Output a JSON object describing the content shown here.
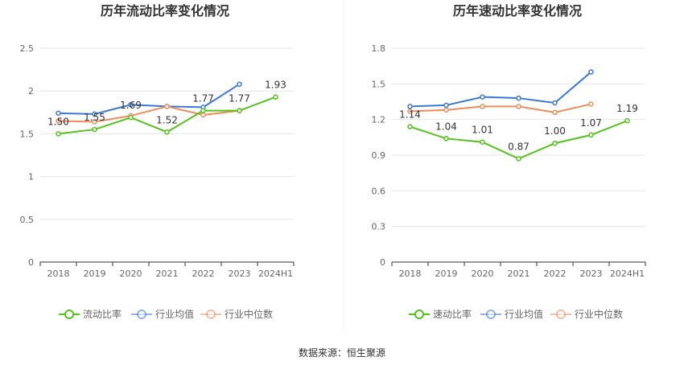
{
  "source_label": "数据来源：恒生聚源",
  "chart_data": [
    {
      "type": "line",
      "title": "历年流动比率变化情况",
      "categories": [
        "2018",
        "2019",
        "2020",
        "2021",
        "2022",
        "2023",
        "2024H1"
      ],
      "ylim": [
        0,
        2.5
      ],
      "yticks": [
        "0",
        "0.5",
        "1",
        "1.5",
        "2",
        "2.5"
      ],
      "grid": true,
      "legend_position": "bottom",
      "series": [
        {
          "name": "流动比率",
          "color": "#52c41a",
          "values": [
            1.5,
            1.55,
            1.69,
            1.52,
            1.77,
            1.77,
            1.93
          ],
          "labels": [
            "1.50",
            "1.55",
            "1.69",
            "1.52",
            "1.77",
            "1.77",
            "1.93"
          ]
        },
        {
          "name": "行业均值",
          "color": "#3b78d8",
          "values": [
            1.74,
            1.73,
            1.84,
            1.82,
            1.81,
            2.08,
            null
          ]
        },
        {
          "name": "行业中位数",
          "color": "#f08c5a",
          "values": [
            1.65,
            1.64,
            1.71,
            1.82,
            1.72,
            1.77,
            null
          ]
        }
      ]
    },
    {
      "type": "line",
      "title": "历年速动比率变化情况",
      "categories": [
        "2018",
        "2019",
        "2020",
        "2021",
        "2022",
        "2023",
        "2024H1"
      ],
      "ylim": [
        0,
        1.8
      ],
      "yticks": [
        "0",
        "0.3",
        "0.6",
        "0.9",
        "1.2",
        "1.5",
        "1.8"
      ],
      "grid": true,
      "legend_position": "bottom",
      "series": [
        {
          "name": "速动比率",
          "color": "#52c41a",
          "values": [
            1.14,
            1.04,
            1.01,
            0.87,
            1.0,
            1.07,
            1.19
          ],
          "labels": [
            "1.14",
            "1.04",
            "1.01",
            "0.87",
            "1.00",
            "1.07",
            "1.19"
          ]
        },
        {
          "name": "行业均值",
          "color": "#3b78d8",
          "values": [
            1.31,
            1.32,
            1.39,
            1.38,
            1.34,
            1.6,
            null
          ]
        },
        {
          "name": "行业中位数",
          "color": "#f08c5a",
          "values": [
            1.27,
            1.28,
            1.31,
            1.31,
            1.26,
            1.33,
            null
          ]
        }
      ]
    }
  ]
}
